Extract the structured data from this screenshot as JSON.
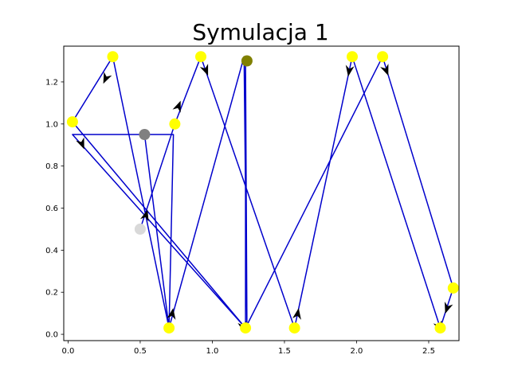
{
  "chart_data": {
    "type": "line",
    "title": "Symulacja 1",
    "xlabel": "",
    "ylabel": "",
    "xlim": [
      -0.03,
      2.71
    ],
    "ylim": [
      -0.03,
      1.37
    ],
    "x_ticks": [
      0.0,
      0.5,
      1.0,
      1.5,
      2.0,
      2.5
    ],
    "x_tick_labels": [
      "0.0",
      "0.5",
      "1.0",
      "1.5",
      "2.0",
      "2.5"
    ],
    "y_ticks": [
      0.0,
      0.2,
      0.4,
      0.6,
      0.8,
      1.0,
      1.2
    ],
    "y_tick_labels": [
      "0.0",
      "0.2",
      "0.4",
      "0.6",
      "0.8",
      "1.0",
      "1.2"
    ],
    "grid": false,
    "line_color": "#0000cc",
    "arrow_color": "#000000",
    "path": [
      {
        "x": 0.5,
        "y": 0.5
      },
      {
        "x": 0.74,
        "y": 1.0
      },
      {
        "x": 0.92,
        "y": 1.32
      },
      {
        "x": 1.57,
        "y": 0.03
      },
      {
        "x": 1.97,
        "y": 1.32
      },
      {
        "x": 2.58,
        "y": 0.03
      },
      {
        "x": 2.67,
        "y": 0.22
      },
      {
        "x": 2.18,
        "y": 1.32
      },
      {
        "x": 1.23,
        "y": 0.03
      },
      {
        "x": 0.03,
        "y": 1.01
      },
      {
        "x": 0.31,
        "y": 1.32
      },
      {
        "x": 0.7,
        "y": 0.03
      },
      {
        "x": 1.22,
        "y": 1.32
      },
      {
        "x": 1.24,
        "y": 0.03
      },
      {
        "x": 1.23,
        "y": 1.3
      },
      {
        "x": 1.23,
        "y": 0.03
      },
      {
        "x": 0.03,
        "y": 0.95
      },
      {
        "x": 0.73,
        "y": 0.95
      },
      {
        "x": 0.7,
        "y": 0.03
      },
      {
        "x": 0.53,
        "y": 0.95
      }
    ],
    "points": [
      {
        "x": 0.03,
        "y": 1.01,
        "color": "#ffff00"
      },
      {
        "x": 0.31,
        "y": 1.32,
        "color": "#ffff00"
      },
      {
        "x": 0.74,
        "y": 1.0,
        "color": "#ffff00"
      },
      {
        "x": 0.92,
        "y": 1.32,
        "color": "#ffff00"
      },
      {
        "x": 0.7,
        "y": 0.03,
        "color": "#ffff00"
      },
      {
        "x": 1.23,
        "y": 0.03,
        "color": "#ffff00"
      },
      {
        "x": 1.57,
        "y": 0.03,
        "color": "#ffff00"
      },
      {
        "x": 1.97,
        "y": 1.32,
        "color": "#ffff00"
      },
      {
        "x": 2.18,
        "y": 1.32,
        "color": "#ffff00"
      },
      {
        "x": 2.58,
        "y": 0.03,
        "color": "#ffff00"
      },
      {
        "x": 2.67,
        "y": 0.22,
        "color": "#ffff00"
      },
      {
        "x": 0.5,
        "y": 0.5,
        "color": "#d9d9d9"
      },
      {
        "x": 0.53,
        "y": 0.95,
        "color": "#808080"
      },
      {
        "x": 1.24,
        "y": 1.3,
        "color": "#808000"
      }
    ],
    "arrows": [
      {
        "x": 0.29,
        "y": 1.26,
        "dx": -0.04,
        "dy": -0.06
      },
      {
        "x": 0.07,
        "y": 0.95,
        "dx": 0.03,
        "dy": -0.05
      },
      {
        "x": 0.52,
        "y": 0.52,
        "dx": 0.03,
        "dy": 0.07
      },
      {
        "x": 0.74,
        "y": 1.04,
        "dx": 0.04,
        "dy": 0.07
      },
      {
        "x": 0.93,
        "y": 1.3,
        "dx": 0.04,
        "dy": -0.07
      },
      {
        "x": 0.71,
        "y": 0.05,
        "dx": 0.02,
        "dy": 0.08
      },
      {
        "x": 1.2,
        "y": 0.08,
        "dx": 0.02,
        "dy": -0.07
      },
      {
        "x": 1.58,
        "y": 0.05,
        "dx": 0.02,
        "dy": 0.08
      },
      {
        "x": 1.96,
        "y": 1.3,
        "dx": -0.02,
        "dy": -0.08
      },
      {
        "x": 2.18,
        "y": 1.3,
        "dx": 0.04,
        "dy": -0.07
      },
      {
        "x": 2.55,
        "y": 0.08,
        "dx": 0.03,
        "dy": -0.06
      },
      {
        "x": 2.65,
        "y": 0.17,
        "dx": -0.03,
        "dy": -0.06
      }
    ]
  }
}
